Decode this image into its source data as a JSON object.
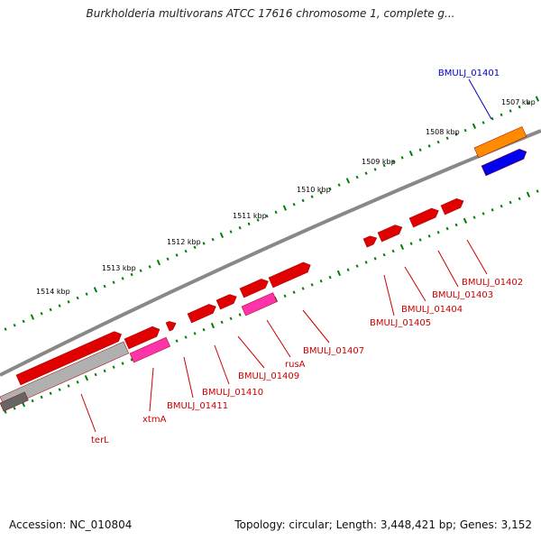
{
  "title": "Burkholderia multivorans ATCC 17616 chromosome 1, complete g...",
  "footer": {
    "accession": "Accession: NC_010804",
    "summary": "Topology: circular; Length: 3,448,421 bp; Genes: 3,152"
  },
  "ticks": [
    {
      "label": "1507 kbp"
    },
    {
      "label": "1508 kbp"
    },
    {
      "label": "1509 kbp"
    },
    {
      "label": "1510 kbp"
    },
    {
      "label": "1511 kbp"
    },
    {
      "label": "1512 kbp"
    },
    {
      "label": "1513 kbp"
    },
    {
      "label": "1514 kbp"
    }
  ],
  "genes": [
    {
      "label": "BMULJ_01401",
      "color": "#0000cc"
    },
    {
      "label": "BMULJ_01402",
      "color": "#cc0000"
    },
    {
      "label": "BMULJ_01403",
      "color": "#cc0000"
    },
    {
      "label": "BMULJ_01404",
      "color": "#cc0000"
    },
    {
      "label": "BMULJ_01405",
      "color": "#cc0000"
    },
    {
      "label": "BMULJ_01407",
      "color": "#cc0000"
    },
    {
      "label": "rusA",
      "color": "#cc0000"
    },
    {
      "label": "BMULJ_01409",
      "color": "#cc0000"
    },
    {
      "label": "BMULJ_01410",
      "color": "#cc0000"
    },
    {
      "label": "BMULJ_01411",
      "color": "#cc0000"
    },
    {
      "label": "xtmA",
      "color": "#cc0000"
    },
    {
      "label": "terL",
      "color": "#cc0000"
    }
  ],
  "colors": {
    "cds": "#e00000",
    "rna": "#ff33aa",
    "orange_feature": "#ff8c00",
    "blue_feature": "#0000ee",
    "backbone": "#888888",
    "tick": "#008000"
  }
}
